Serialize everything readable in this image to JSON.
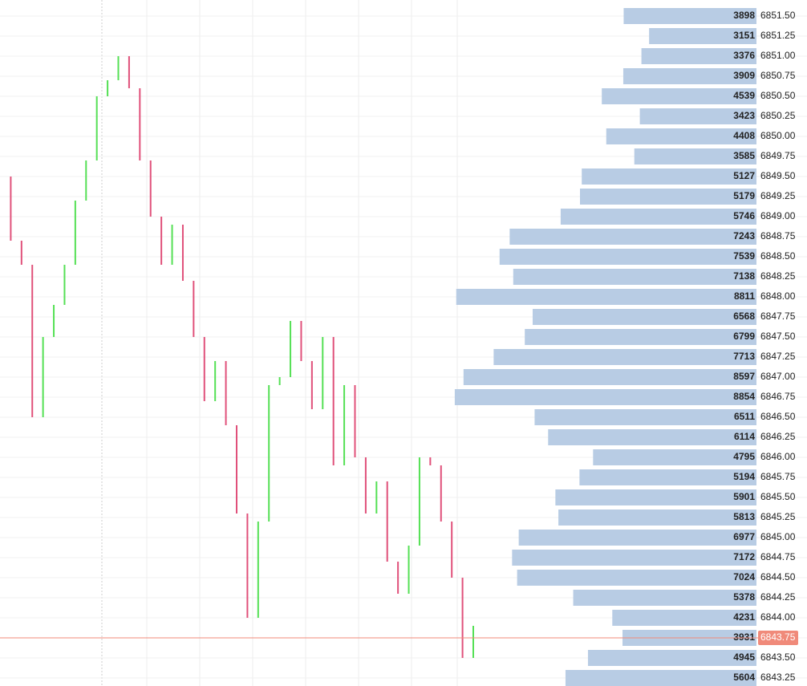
{
  "chart_data": {
    "type": "profile",
    "ylim": [
      6843.15,
      6851.7
    ],
    "xlim": [
      0,
      22200
    ],
    "bar_color": "#b8cce4",
    "up_color": "#55e055",
    "down_color": "#e0507a",
    "last_color": "#f08a7a",
    "grid": true,
    "last_price": 6843.75,
    "levels": [
      {
        "value": 6851.5,
        "label": "6851.50"
      },
      {
        "value": 6851.25,
        "label": "6851.25"
      },
      {
        "value": 6851.0,
        "label": "6851.00"
      },
      {
        "value": 6850.75,
        "label": "6850.75"
      },
      {
        "value": 6850.5,
        "label": "6850.50"
      },
      {
        "value": 6850.25,
        "label": "6850.25"
      },
      {
        "value": 6850.0,
        "label": "6850.00"
      },
      {
        "value": 6849.75,
        "label": "6849.75"
      },
      {
        "value": 6849.5,
        "label": "6849.50"
      },
      {
        "value": 6849.25,
        "label": "6849.25"
      },
      {
        "value": 6849.0,
        "label": "6849.00"
      },
      {
        "value": 6848.75,
        "label": "6848.75"
      },
      {
        "value": 6848.5,
        "label": "6848.50"
      },
      {
        "value": 6848.25,
        "label": "6848.25"
      },
      {
        "value": 6848.0,
        "label": "6848.00"
      },
      {
        "value": 6847.75,
        "label": "6847.75"
      },
      {
        "value": 6847.5,
        "label": "6847.50"
      },
      {
        "value": 6847.25,
        "label": "6847.25"
      },
      {
        "value": 6847.0,
        "label": "6847.00"
      },
      {
        "value": 6846.75,
        "label": "6846.75"
      },
      {
        "value": 6846.5,
        "label": "6846.50"
      },
      {
        "value": 6846.25,
        "label": "6846.25"
      },
      {
        "value": 6846.0,
        "label": "6846.00"
      },
      {
        "value": 6845.75,
        "label": "6845.75"
      },
      {
        "value": 6845.5,
        "label": "6845.50"
      },
      {
        "value": 6845.25,
        "label": "6845.25"
      },
      {
        "value": 6845.0,
        "label": "6845.00"
      },
      {
        "value": 6844.75,
        "label": "6844.75"
      },
      {
        "value": 6844.5,
        "label": "6844.50"
      },
      {
        "value": 6844.25,
        "label": "6844.25"
      },
      {
        "value": 6844.0,
        "label": "6844.00"
      },
      {
        "value": 6843.75,
        "label": "6843.75"
      },
      {
        "value": 6843.5,
        "label": "6843.50"
      },
      {
        "value": 6843.25,
        "label": "6843.25"
      }
    ],
    "volumes": [
      3898,
      3151,
      3376,
      3909,
      4539,
      3423,
      4408,
      3585,
      5127,
      5179,
      5746,
      7243,
      7539,
      7138,
      8811,
      6568,
      6799,
      7713,
      8597,
      8854,
      6511,
      6114,
      4795,
      5194,
      5901,
      5813,
      6977,
      7172,
      7024,
      5378,
      4231,
      3931,
      4945,
      5604
    ],
    "prices": [
      6849.5,
      6848.7,
      6848.4,
      6846.5,
      6847.5,
      6847.9,
      6848.4,
      6849.2,
      6849.7,
      6850.5,
      6850.7,
      6851.0,
      6850.6,
      6849.7,
      6849.0,
      6848.4,
      6848.9,
      6848.2,
      6847.5,
      6846.7,
      6847.2,
      6846.4,
      6845.3,
      6844.0,
      6845.2,
      6846.9,
      6847.0,
      6847.7,
      6847.2,
      6846.6,
      6847.5,
      6845.9,
      6846.9,
      6846.0,
      6845.3,
      6845.7,
      6844.7,
      6844.3,
      6844.9,
      6846.0,
      6845.9,
      6845.2,
      6844.5,
      6843.5,
      6843.9
    ]
  }
}
